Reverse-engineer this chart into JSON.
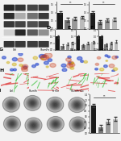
{
  "figure_bg": "#f2f2f2",
  "wb_bg": "#c0bebe",
  "bar_colors": [
    "#1a1a1a",
    "#777777",
    "#999999",
    "#bbbbbb"
  ],
  "bar_groups_B": [
    1.0,
    0.55,
    0.65,
    0.72
  ],
  "bar_groups_C": [
    1.0,
    0.42,
    0.52,
    0.6
  ],
  "bar_groups_D": [
    1.0,
    0.28,
    0.42,
    0.5
  ],
  "bar_groups_E": [
    1.0,
    0.33,
    0.48,
    0.58
  ],
  "bar_groups_F": [
    1.0,
    0.38,
    0.52,
    0.62
  ],
  "bar_groups_I": [
    1.0,
    0.22,
    0.42,
    0.52
  ],
  "col_titles": [
    "Ctrl",
    "ShcmFn",
    "Fk + Ex",
    "ShcmFn + Ex"
  ],
  "micro_bg_row1": [
    "#100020",
    "#100020",
    "#100020",
    "#100020"
  ],
  "micro_bg_row2": [
    "#0a0808",
    "#0a0808",
    "#0a0808",
    "#0a0808"
  ],
  "colony_bg": "#d8d8d8",
  "panel_label_fontsize": 4.5,
  "tick_fontsize": 1.8,
  "col_title_fontsize": 2.5,
  "wb_band_alphas_row0": [
    0.88,
    0.82,
    0.75,
    0.8
  ],
  "wb_band_alphas_row1": [
    0.85,
    0.3,
    0.55,
    0.8
  ],
  "wb_band_alphas_row2": [
    0.8,
    0.75,
    0.7,
    0.78
  ],
  "wb_band_alphas_row3": [
    0.15,
    0.88,
    0.65,
    0.42
  ],
  "wb_band_alphas_row4": [
    0.82,
    0.8,
    0.78,
    0.8
  ]
}
